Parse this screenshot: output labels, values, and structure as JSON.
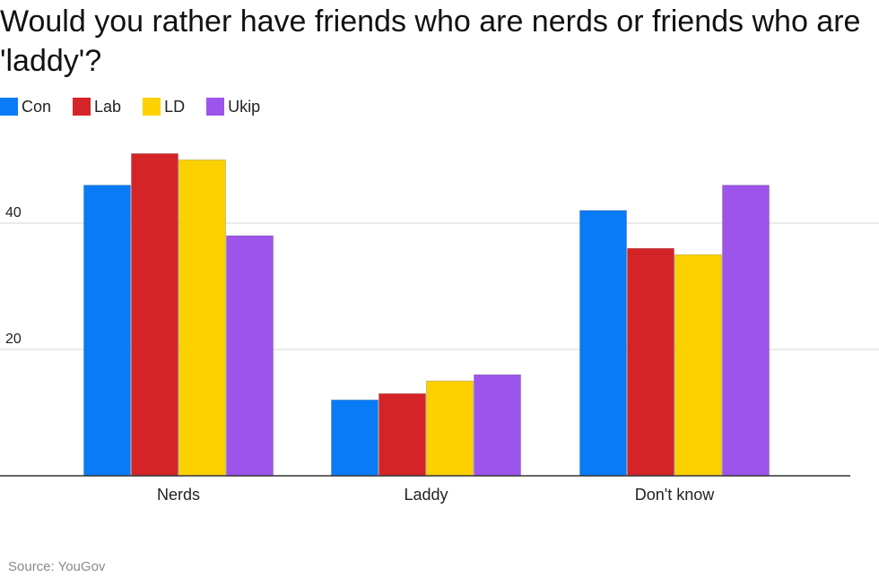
{
  "source": "Source: YouGov",
  "colors": {
    "Con": "#0a7bf7",
    "Lab": "#d42428",
    "LD": "#fdd000",
    "Ukip": "#9d54ea"
  },
  "chart_data": {
    "type": "bar",
    "title": "Would you rather have friends who are nerds or friends who are 'laddy'?",
    "xlabel": "",
    "ylabel": "",
    "categories": [
      "Nerds",
      "Laddy",
      "Don't know"
    ],
    "series": [
      {
        "name": "Con",
        "values": [
          46,
          12,
          42
        ]
      },
      {
        "name": "Lab",
        "values": [
          51,
          13,
          36
        ]
      },
      {
        "name": "LD",
        "values": [
          50,
          15,
          35
        ]
      },
      {
        "name": "Ukip",
        "values": [
          38,
          16,
          46
        ]
      }
    ],
    "yticks": [
      20,
      40
    ],
    "ylim": [
      0,
      55
    ],
    "grid": true,
    "legend": "top-left"
  }
}
